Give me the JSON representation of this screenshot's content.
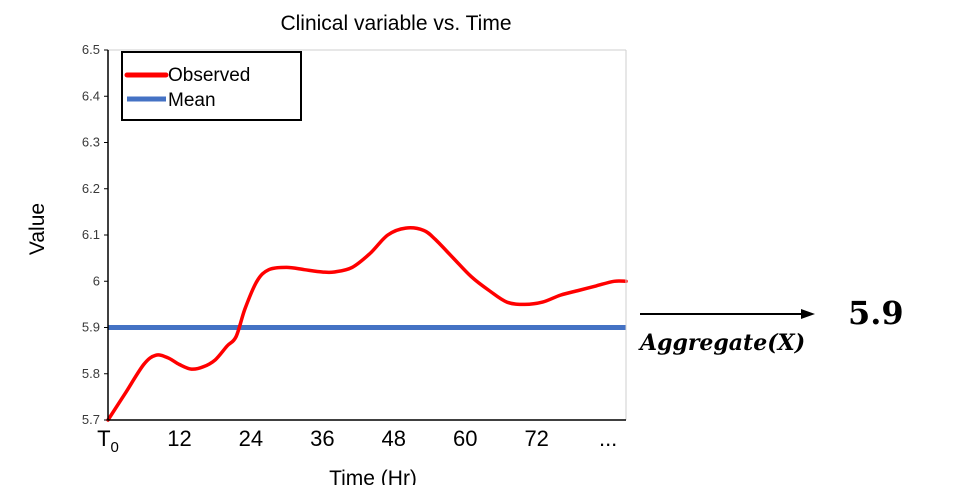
{
  "chart_data": {
    "type": "line",
    "title": "Clinical variable vs. Time",
    "xlabel": "Time (Hr)",
    "ylabel": "Value",
    "ylim": [
      5.7,
      6.5
    ],
    "yticks": [
      "5.7",
      "5.8",
      "5.9",
      "6",
      "6.1",
      "6.2",
      "6.3",
      "6.4",
      "6.5"
    ],
    "xticks": [
      {
        "x": 0,
        "label": "T",
        "sub": "0"
      },
      {
        "x": 12,
        "label": "12"
      },
      {
        "x": 24,
        "label": "24"
      },
      {
        "x": 36,
        "label": "36"
      },
      {
        "x": 48,
        "label": "48"
      },
      {
        "x": 60,
        "label": "60"
      },
      {
        "x": 72,
        "label": "72"
      },
      {
        "x": 84,
        "label": "..."
      }
    ],
    "xlim": [
      0,
      87
    ],
    "legend_position": "top-left",
    "series": [
      {
        "name": "Observed",
        "color": "#ff0000",
        "x": [
          0,
          3,
          6,
          8,
          10,
          12,
          14,
          16,
          18,
          20,
          21.5,
          23,
          25,
          27,
          30,
          33,
          36,
          38,
          41,
          44,
          47,
          50,
          53,
          55,
          58,
          61,
          64,
          67,
          70,
          73,
          76,
          79,
          82,
          85,
          87
        ],
        "y": [
          5.7,
          5.76,
          5.82,
          5.84,
          5.835,
          5.82,
          5.81,
          5.815,
          5.83,
          5.86,
          5.88,
          5.94,
          6.0,
          6.025,
          6.03,
          6.025,
          6.02,
          6.02,
          6.03,
          6.06,
          6.1,
          6.115,
          6.11,
          6.09,
          6.05,
          6.01,
          5.98,
          5.955,
          5.95,
          5.955,
          5.97,
          5.98,
          5.99,
          6.0,
          6.0
        ]
      },
      {
        "name": "Mean",
        "color": "#4472c4",
        "x": [
          0,
          87
        ],
        "y": [
          5.9,
          5.9
        ]
      }
    ]
  },
  "aggregate": {
    "label": "Aggregate(X)",
    "value": "5.9"
  }
}
